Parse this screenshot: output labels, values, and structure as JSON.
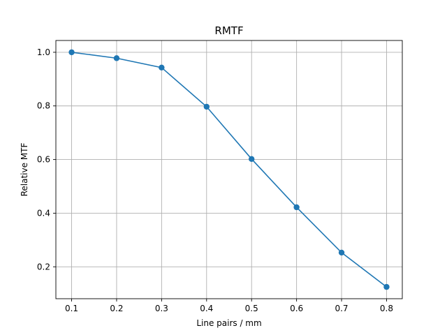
{
  "chart_data": {
    "type": "line",
    "title": "RMTF",
    "xlabel": "Line pairs / mm",
    "ylabel": "Relative MTF",
    "x": [
      0.1,
      0.2,
      0.3,
      0.4,
      0.5,
      0.6,
      0.7,
      0.8
    ],
    "series": [
      {
        "values": [
          1.0,
          0.978,
          0.943,
          0.797,
          0.602,
          0.422,
          0.253,
          0.125
        ]
      }
    ],
    "xticks": [
      "0.1",
      "0.2",
      "0.3",
      "0.4",
      "0.5",
      "0.6",
      "0.7",
      "0.8"
    ],
    "yticks": [
      "0.2",
      "0.4",
      "0.6",
      "0.8",
      "1.0"
    ],
    "xlim": [
      0.065,
      0.835
    ],
    "ylim": [
      0.081,
      1.044
    ],
    "grid": true,
    "marker": "circle",
    "color": "#1f77b4"
  }
}
